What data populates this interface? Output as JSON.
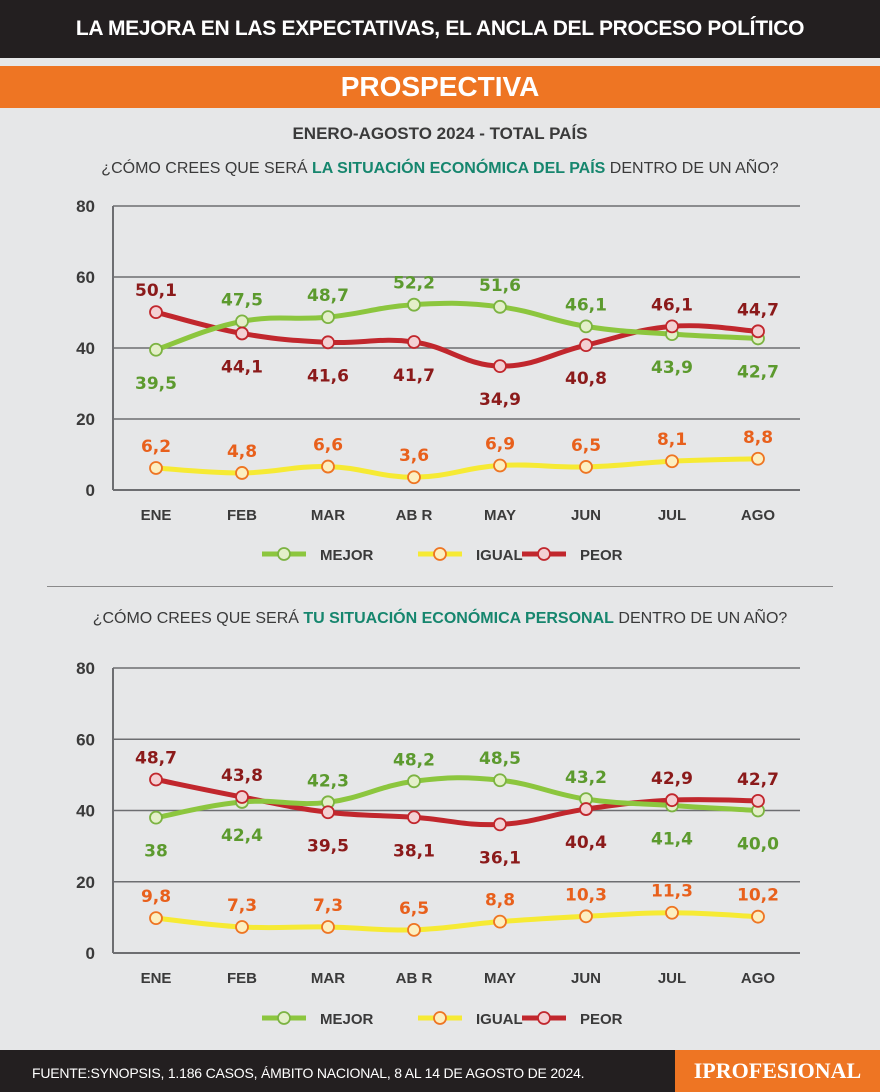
{
  "header": {
    "title": "LA MEJORA EN LAS EXPECTATIVAS, EL ANCLA DEL PROCESO POLÍTICO",
    "section": "PROSPECTIVA",
    "period": "ENERO-AGOSTO 2024 - TOTAL PAÍS"
  },
  "footer": {
    "source": "FUENTE:SYNOPSIS, 1.186 CASOS, ÁMBITO NACIONAL, 8 AL 14 DE AGOSTO DE 2024.",
    "logo": "IPROFESIONAL"
  },
  "colors": {
    "mejor_line": "#8cc63e",
    "mejor_label": "#5c9a2e",
    "igual_line": "#f6ea34",
    "igual_label": "#e8601c",
    "peor_line": "#c1272d",
    "peor_label": "#8b1a1a"
  },
  "chart_data": [
    {
      "type": "line",
      "q_pre": "¿CÓMO CREES QUE SERÁ ",
      "q_em": "LA SITUACIÓN ECONÓMICA DEL PAÍS",
      "q_post": " DENTRO DE UN AÑO?",
      "categories": [
        "ENE",
        "FEB",
        "MAR",
        "AB R",
        "MAY",
        "JUN",
        "JUL",
        "AGO"
      ],
      "ylim": [
        0,
        80
      ],
      "yticks": [
        "0",
        "20",
        "40",
        "60",
        "80"
      ],
      "grid": true,
      "legend": "bottom",
      "series": [
        {
          "name": "MEJOR",
          "values": [
            39.5,
            47.5,
            48.7,
            52.2,
            51.6,
            46.1,
            43.9,
            42.7
          ],
          "labels": [
            "39,5",
            "47,5",
            "48,7",
            "52,2",
            "51,6",
            "46,1",
            "43,9",
            "42,7"
          ]
        },
        {
          "name": "IGUAL",
          "values": [
            6.2,
            4.8,
            6.6,
            3.6,
            6.9,
            6.5,
            8.1,
            8.8
          ],
          "labels": [
            "6,2",
            "4,8",
            "6,6",
            "3,6",
            "6,9",
            "6,5",
            "8,1",
            "8,8"
          ]
        },
        {
          "name": "PEOR",
          "values": [
            50.1,
            44.1,
            41.6,
            41.7,
            34.9,
            40.8,
            46.1,
            44.7
          ],
          "labels": [
            "50,1",
            "44,1",
            "41,6",
            "41,7",
            "34,9",
            "40,8",
            "46,1",
            "44,7"
          ]
        }
      ]
    },
    {
      "type": "line",
      "q_pre": "¿CÓMO CREES QUE SERÁ ",
      "q_em": "TU SITUACIÓN ECONÓMICA PERSONAL",
      "q_post": " DENTRO DE UN AÑO?",
      "categories": [
        "ENE",
        "FEB",
        "MAR",
        "AB R",
        "MAY",
        "JUN",
        "JUL",
        "AGO"
      ],
      "ylim": [
        0,
        80
      ],
      "yticks": [
        "0",
        "20",
        "40",
        "60",
        "80"
      ],
      "grid": true,
      "legend": "bottom",
      "series": [
        {
          "name": "MEJOR",
          "values": [
            38,
            42.4,
            42.3,
            48.2,
            48.5,
            43.2,
            41.4,
            40.0
          ],
          "labels": [
            "38",
            "42,4",
            "42,3",
            "48,2",
            "48,5",
            "43,2",
            "41,4",
            "40,0"
          ]
        },
        {
          "name": "IGUAL",
          "values": [
            9.8,
            7.3,
            7.3,
            6.5,
            8.8,
            10.3,
            11.3,
            10.2
          ],
          "labels": [
            "9,8",
            "7,3",
            "7,3",
            "6,5",
            "8,8",
            "10,3",
            "11,3",
            "10,2"
          ]
        },
        {
          "name": "PEOR",
          "values": [
            48.7,
            43.8,
            39.5,
            38.1,
            36.1,
            40.4,
            42.9,
            42.7
          ],
          "labels": [
            "48,7",
            "43,8",
            "39,5",
            "38,1",
            "36,1",
            "40,4",
            "42,9",
            "42,7"
          ]
        }
      ]
    }
  ]
}
